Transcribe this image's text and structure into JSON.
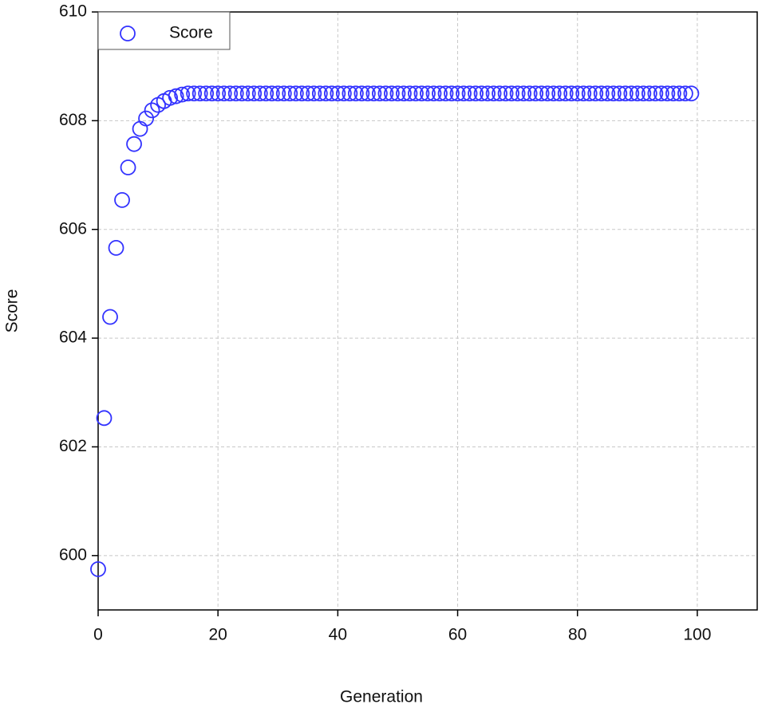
{
  "chart_data": {
    "type": "scatter",
    "x_label": "Generation",
    "y_label": "Score",
    "x": [
      0,
      1,
      2,
      3,
      4,
      5,
      6,
      7,
      8,
      9,
      10,
      11,
      12,
      13,
      14,
      15,
      16,
      17,
      18,
      19,
      20,
      21,
      22,
      23,
      24,
      25,
      26,
      27,
      28,
      29,
      30,
      31,
      32,
      33,
      34,
      35,
      36,
      37,
      38,
      39,
      40,
      41,
      42,
      43,
      44,
      45,
      46,
      47,
      48,
      49,
      50,
      51,
      52,
      53,
      54,
      55,
      56,
      57,
      58,
      59,
      60,
      61,
      62,
      63,
      64,
      65,
      66,
      67,
      68,
      69,
      70,
      71,
      72,
      73,
      74,
      75,
      76,
      77,
      78,
      79,
      80,
      81,
      82,
      83,
      84,
      85,
      86,
      87,
      88,
      89,
      90,
      91,
      92,
      93,
      94,
      95,
      96,
      97,
      98,
      99
    ],
    "series": [
      {
        "name": "Score",
        "color": "#3333ff",
        "values": [
          599.75,
          602.53,
          604.39,
          605.66,
          606.54,
          607.14,
          607.57,
          607.85,
          608.04,
          608.19,
          608.29,
          608.36,
          608.42,
          608.45,
          608.48,
          608.5,
          608.5,
          608.5,
          608.5,
          608.5,
          608.5,
          608.5,
          608.5,
          608.5,
          608.5,
          608.5,
          608.5,
          608.5,
          608.5,
          608.5,
          608.5,
          608.5,
          608.5,
          608.5,
          608.5,
          608.5,
          608.5,
          608.5,
          608.5,
          608.5,
          608.5,
          608.5,
          608.5,
          608.5,
          608.5,
          608.5,
          608.5,
          608.5,
          608.5,
          608.5,
          608.5,
          608.5,
          608.5,
          608.5,
          608.5,
          608.5,
          608.5,
          608.5,
          608.5,
          608.5,
          608.5,
          608.5,
          608.5,
          608.5,
          608.5,
          608.5,
          608.5,
          608.5,
          608.5,
          608.5,
          608.5,
          608.5,
          608.5,
          608.5,
          608.5,
          608.5,
          608.5,
          608.5,
          608.5,
          608.5,
          608.5,
          608.5,
          608.5,
          608.5,
          608.5,
          608.5,
          608.5,
          608.5,
          608.5,
          608.5,
          608.5,
          608.5,
          608.5,
          608.5,
          608.5,
          608.5,
          608.5,
          608.5,
          608.5,
          608.5
        ]
      }
    ],
    "xlim": [
      0,
      110
    ],
    "ylim": [
      599,
      610
    ],
    "xticks": [
      0,
      20,
      40,
      60,
      80,
      100
    ],
    "yticks": [
      600,
      602,
      604,
      606,
      608,
      610
    ],
    "grid": true,
    "legend": "top-left"
  }
}
